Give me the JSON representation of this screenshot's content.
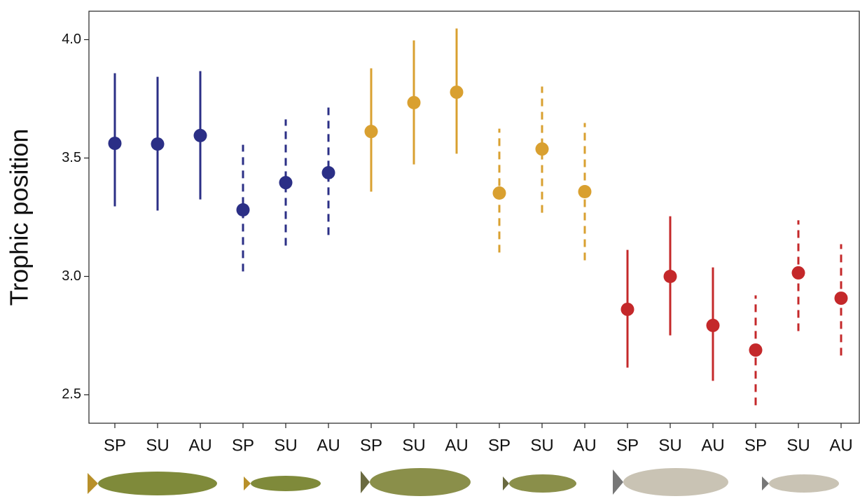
{
  "chart_data": {
    "type": "pointrange",
    "y_label": "Trophic position",
    "ylim": [
      2.38,
      4.12
    ],
    "yticks": [
      2.5,
      {
        "value": 3,
        "label": "3.0"
      },
      3.5,
      {
        "value": 4,
        "label": "4.0"
      }
    ],
    "series": [
      {
        "color": "#2b2f86",
        "dashed": false,
        "categories": [
          "SP",
          "SU",
          "AU"
        ],
        "values": [
          3.562,
          3.559,
          3.595
        ],
        "lower": [
          3.296,
          3.278,
          3.325
        ],
        "upper": [
          3.858,
          3.843,
          3.867
        ]
      },
      {
        "color": "#2b2f86",
        "dashed": true,
        "categories": [
          "SP",
          "SU",
          "AU"
        ],
        "values": [
          3.281,
          3.396,
          3.438
        ],
        "lower": [
          3.021,
          3.13,
          3.175
        ],
        "upper": [
          3.556,
          3.663,
          3.713
        ]
      },
      {
        "color": "#d9a030",
        "dashed": false,
        "categories": [
          "SP",
          "SU",
          "AU"
        ],
        "values": [
          3.612,
          3.734,
          3.778
        ],
        "lower": [
          3.358,
          3.473,
          3.518
        ],
        "upper": [
          3.879,
          3.997,
          4.047
        ]
      },
      {
        "color": "#d9a030",
        "dashed": true,
        "categories": [
          "SP",
          "SU",
          "AU"
        ],
        "values": [
          3.352,
          3.538,
          3.358
        ],
        "lower": [
          3.101,
          3.269,
          3.068
        ],
        "upper": [
          3.624,
          3.802,
          3.648
        ]
      },
      {
        "color": "#c4282a",
        "dashed": false,
        "categories": [
          "SP",
          "SU",
          "AU"
        ],
        "values": [
          2.861,
          3.0,
          2.793
        ],
        "lower": [
          2.615,
          2.751,
          2.559
        ],
        "upper": [
          3.112,
          3.254,
          3.038
        ]
      },
      {
        "color": "#c4282a",
        "dashed": true,
        "categories": [
          "SP",
          "SU",
          "AU"
        ],
        "values": [
          2.689,
          3.015,
          2.908
        ],
        "lower": [
          2.456,
          2.769,
          2.666
        ],
        "upper": [
          2.92,
          3.237,
          3.136
        ]
      }
    ]
  }
}
